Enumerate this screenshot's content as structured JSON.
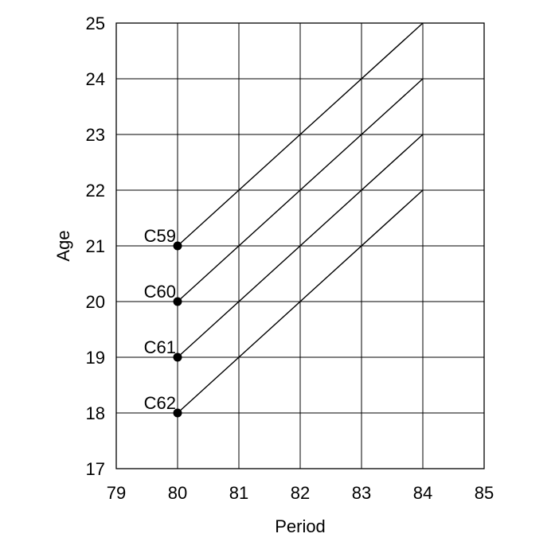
{
  "chart_data": {
    "type": "line",
    "title": "",
    "xlabel": "Period",
    "ylabel": "Age",
    "xlim": [
      79,
      85
    ],
    "ylim": [
      17,
      25
    ],
    "xticks": [
      79,
      80,
      81,
      82,
      83,
      84,
      85
    ],
    "yticks": [
      17,
      18,
      19,
      20,
      21,
      22,
      23,
      24,
      25
    ],
    "grid": true,
    "series": [
      {
        "name": "C59",
        "x": [
          80,
          84
        ],
        "y": [
          21,
          25
        ],
        "start_marker": true
      },
      {
        "name": "C60",
        "x": [
          80,
          84
        ],
        "y": [
          20,
          24
        ],
        "start_marker": true
      },
      {
        "name": "C61",
        "x": [
          80,
          84
        ],
        "y": [
          19,
          23
        ],
        "start_marker": true
      },
      {
        "name": "C62",
        "x": [
          80,
          84
        ],
        "y": [
          18,
          22
        ],
        "start_marker": true
      }
    ],
    "colors": {
      "line": "#000000",
      "grid": "#000000",
      "marker": "#000000"
    }
  }
}
